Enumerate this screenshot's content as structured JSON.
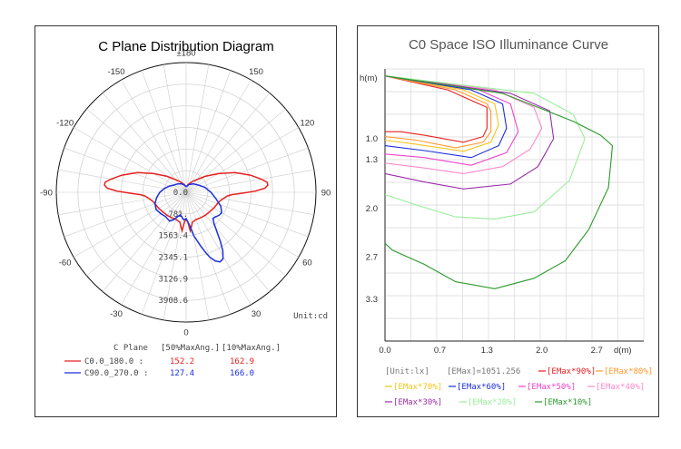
{
  "left": {
    "title": "C Plane Distribution Diagram",
    "unit_label": "Unit:cd",
    "legend": {
      "header_plane": "C Plane",
      "header_50": "[50%MaxAng.]",
      "header_10": "[10%MaxAng.]",
      "rows": [
        {
          "name": "C0.0_180.0 :",
          "v50": "152.2",
          "v10": "162.9",
          "color": "#e62020"
        },
        {
          "name": "C90.0_270.0 :",
          "v50": "127.4",
          "v10": "166.0",
          "color": "#1a2ee0"
        }
      ]
    }
  },
  "right": {
    "title": "C0 Space ISO Illuminance Curve",
    "y_axis_label": "h(m)",
    "x_axis_label": "d(m)",
    "legend": {
      "unit": "[Unit:lx]",
      "emax": "[EMax]=1051.256",
      "items": [
        {
          "label": "[EMax*90%]",
          "color": "#e62020"
        },
        {
          "label": "[EMax*80%]",
          "color": "#ff9a2e"
        },
        {
          "label": "[EMax*70%]",
          "color": "#f5c518"
        },
        {
          "label": "[EMax*60%]",
          "color": "#1a2ee0"
        },
        {
          "label": "[EMax*50%]",
          "color": "#ee44cc"
        },
        {
          "label": "[EMax*40%]",
          "color": "#ff88cc"
        },
        {
          "label": "[EMax*30%]",
          "color": "#9a2ea8"
        },
        {
          "label": "[EMax*20%]",
          "color": "#99ee99"
        },
        {
          "label": "[EMax*10%]",
          "color": "#2a9a2a"
        }
      ]
    }
  },
  "chart_data": [
    {
      "type": "polar",
      "title": "C Plane Distribution Diagram",
      "unit": "Unit:cd",
      "angle_labels": [
        "±180",
        "150",
        "120",
        "90",
        "60",
        "30",
        "0",
        "-30",
        "-60",
        "-90",
        "-120",
        "-150"
      ],
      "angles": [
        180,
        150,
        120,
        90,
        60,
        30,
        0,
        -30,
        -60,
        -90,
        -120,
        -150
      ],
      "radial_labels": [
        "0.0",
        "781.",
        "1563.4",
        "2345.1",
        "3126.9",
        "3908.6"
      ],
      "rmax": 3908.6,
      "series": [
        {
          "name": "C0.0_180.0",
          "color": "#e62020",
          "points": [
            [
              -180,
              200
            ],
            [
              -165,
              300
            ],
            [
              -150,
              450
            ],
            [
              -140,
              600
            ],
            [
              -130,
              900
            ],
            [
              -120,
              1350
            ],
            [
              -112,
              1900
            ],
            [
              -105,
              2400
            ],
            [
              -100,
              2750
            ],
            [
              -97,
              2950
            ],
            [
              -95,
              2960
            ],
            [
              -93,
              2850
            ],
            [
              -91,
              2500
            ],
            [
              -89,
              2000
            ],
            [
              -87,
              1650
            ],
            [
              -85,
              1500
            ],
            [
              -80,
              1350
            ],
            [
              -75,
              1250
            ],
            [
              -70,
              1200
            ],
            [
              -60,
              1150
            ],
            [
              -50,
              1100
            ],
            [
              -40,
              1080
            ],
            [
              -30,
              1060
            ],
            [
              -20,
              1050
            ],
            [
              -12,
              1100
            ],
            [
              -6,
              1400
            ],
            [
              -3,
              1050
            ],
            [
              0,
              1000
            ],
            [
              3,
              1050
            ],
            [
              6,
              1400
            ],
            [
              12,
              1100
            ],
            [
              20,
              1050
            ],
            [
              30,
              1060
            ],
            [
              40,
              1080
            ],
            [
              50,
              1100
            ],
            [
              60,
              1150
            ],
            [
              70,
              1200
            ],
            [
              75,
              1250
            ],
            [
              80,
              1350
            ],
            [
              85,
              1500
            ],
            [
              87,
              1650
            ],
            [
              89,
              2000
            ],
            [
              91,
              2500
            ],
            [
              93,
              2850
            ],
            [
              95,
              2960
            ],
            [
              97,
              2950
            ],
            [
              100,
              2750
            ],
            [
              105,
              2400
            ],
            [
              112,
              1900
            ],
            [
              120,
              1350
            ],
            [
              130,
              900
            ],
            [
              140,
              600
            ],
            [
              150,
              450
            ],
            [
              165,
              300
            ],
            [
              180,
              200
            ]
          ]
        },
        {
          "name": "C90.0_270.0",
          "color": "#1a2ee0",
          "points": [
            [
              -180,
              200
            ],
            [
              -165,
              280
            ],
            [
              -150,
              360
            ],
            [
              -135,
              430
            ],
            [
              -120,
              520
            ],
            [
              -110,
              650
            ],
            [
              -100,
              800
            ],
            [
              -90,
              950
            ],
            [
              -80,
              1080
            ],
            [
              -70,
              1200
            ],
            [
              -60,
              1250
            ],
            [
              -50,
              1200
            ],
            [
              -40,
              1150
            ],
            [
              -30,
              1200
            ],
            [
              -25,
              1100
            ],
            [
              -20,
              950
            ],
            [
              -15,
              850
            ],
            [
              -10,
              900
            ],
            [
              -5,
              1000
            ],
            [
              0,
              950
            ],
            [
              5,
              1150
            ],
            [
              10,
              1600
            ],
            [
              15,
              2000
            ],
            [
              18,
              2300
            ],
            [
              20,
              2500
            ],
            [
              23,
              2700
            ],
            [
              26,
              2800
            ],
            [
              29,
              2750
            ],
            [
              32,
              2500
            ],
            [
              35,
              2150
            ],
            [
              38,
              1800
            ],
            [
              42,
              1500
            ],
            [
              46,
              1350
            ],
            [
              50,
              1380
            ],
            [
              55,
              1450
            ],
            [
              60,
              1480
            ],
            [
              68,
              1350
            ],
            [
              78,
              1100
            ],
            [
              90,
              900
            ],
            [
              105,
              700
            ],
            [
              120,
              520
            ],
            [
              140,
              400
            ],
            [
              160,
              300
            ],
            [
              180,
              200
            ]
          ]
        }
      ],
      "legend_values": [
        {
          "name": "C0.0_180.0",
          "max50_ang": 152.2,
          "max10_ang": 162.9
        },
        {
          "name": "C90.0_270.0",
          "max50_ang": 127.4,
          "max10_ang": 166.0
        }
      ]
    },
    {
      "type": "line",
      "title": "C0 Space ISO Illuminance Curve",
      "xlabel": "d(m)",
      "ylabel": "h(m)",
      "xlim": [
        0,
        3.3
      ],
      "ylim": [
        0,
        3.9
      ],
      "y_inverted": true,
      "x_ticks": [
        "0.0",
        "0.7",
        "1.3",
        "2.0",
        "2.7"
      ],
      "x_tick_values": [
        0.0,
        0.7,
        1.3,
        2.0,
        2.7
      ],
      "y_ticks": [
        "1.0",
        "1.3",
        "2.0",
        "2.7",
        "3.3"
      ],
      "y_tick_values": [
        1.0,
        1.3,
        2.0,
        2.7,
        3.3
      ],
      "emax": 1051.256,
      "unit": "lx",
      "series": [
        {
          "name": "[EMax*90%]",
          "color": "#e62020",
          "points": [
            [
              0,
              0.1
            ],
            [
              0.8,
              0.3
            ],
            [
              1.2,
              0.5
            ],
            [
              1.3,
              0.55
            ],
            [
              1.3,
              0.85
            ],
            [
              1.25,
              0.97
            ],
            [
              1.0,
              1.05
            ],
            [
              0.5,
              0.95
            ],
            [
              0.2,
              0.9
            ],
            [
              0,
              0.9
            ]
          ]
        },
        {
          "name": "[EMax*80%]",
          "color": "#ff9a2e",
          "points": [
            [
              0,
              0.1
            ],
            [
              0.9,
              0.3
            ],
            [
              1.3,
              0.5
            ],
            [
              1.35,
              0.6
            ],
            [
              1.35,
              0.9
            ],
            [
              1.25,
              1.05
            ],
            [
              0.9,
              1.13
            ],
            [
              0.4,
              1.02
            ],
            [
              0,
              0.97
            ]
          ]
        },
        {
          "name": "[EMax*70%]",
          "color": "#f5c518",
          "points": [
            [
              0,
              0.1
            ],
            [
              1.0,
              0.3
            ],
            [
              1.4,
              0.5
            ],
            [
              1.45,
              0.8
            ],
            [
              1.35,
              1.05
            ],
            [
              1.0,
              1.18
            ],
            [
              0.4,
              1.08
            ],
            [
              0,
              1.02
            ]
          ]
        },
        {
          "name": "[EMax*60%]",
          "color": "#1a2ee0",
          "points": [
            [
              0,
              0.1
            ],
            [
              1.1,
              0.3
            ],
            [
              1.5,
              0.5
            ],
            [
              1.55,
              0.85
            ],
            [
              1.45,
              1.1
            ],
            [
              1.1,
              1.27
            ],
            [
              0.5,
              1.17
            ],
            [
              0,
              1.1
            ]
          ]
        },
        {
          "name": "[EMax*50%]",
          "color": "#ee44cc",
          "points": [
            [
              0,
              0.1
            ],
            [
              1.2,
              0.3
            ],
            [
              1.6,
              0.5
            ],
            [
              1.7,
              0.9
            ],
            [
              1.55,
              1.2
            ],
            [
              1.1,
              1.38
            ],
            [
              0.5,
              1.27
            ],
            [
              0,
              1.22
            ]
          ]
        },
        {
          "name": "[EMax*40%]",
          "color": "#ff88cc",
          "points": [
            [
              0,
              0.1
            ],
            [
              1.4,
              0.3
            ],
            [
              1.9,
              0.55
            ],
            [
              2.0,
              0.85
            ],
            [
              1.85,
              1.15
            ],
            [
              1.5,
              1.4
            ],
            [
              1.0,
              1.5
            ],
            [
              0.5,
              1.42
            ],
            [
              0,
              1.35
            ]
          ]
        },
        {
          "name": "[EMax*30%]",
          "color": "#9a2ea8",
          "points": [
            [
              0,
              0.1
            ],
            [
              1.6,
              0.35
            ],
            [
              2.1,
              0.6
            ],
            [
              2.15,
              1.0
            ],
            [
              1.95,
              1.4
            ],
            [
              1.6,
              1.65
            ],
            [
              1.0,
              1.72
            ],
            [
              0.5,
              1.62
            ],
            [
              0,
              1.5
            ]
          ]
        },
        {
          "name": "[EMax*20%]",
          "color": "#99ee99",
          "points": [
            [
              0,
              0.1
            ],
            [
              1.9,
              0.35
            ],
            [
              2.4,
              0.65
            ],
            [
              2.55,
              1.0
            ],
            [
              2.35,
              1.6
            ],
            [
              1.9,
              2.05
            ],
            [
              1.4,
              2.15
            ],
            [
              0.9,
              2.12
            ],
            [
              0.4,
              1.95
            ],
            [
              0,
              1.8
            ]
          ]
        },
        {
          "name": "[EMax*10%]",
          "color": "#2a9a2a",
          "points": [
            [
              0,
              0.1
            ],
            [
              1.5,
              0.35
            ],
            [
              2.4,
              0.75
            ],
            [
              2.75,
              0.95
            ],
            [
              2.9,
              1.1
            ],
            [
              2.85,
              1.7
            ],
            [
              2.6,
              2.3
            ],
            [
              2.3,
              2.75
            ],
            [
              1.9,
              3.0
            ],
            [
              1.4,
              3.15
            ],
            [
              0.9,
              3.05
            ],
            [
              0.5,
              2.8
            ],
            [
              0.1,
              2.6
            ],
            [
              0,
              2.5
            ]
          ]
        }
      ]
    }
  ]
}
